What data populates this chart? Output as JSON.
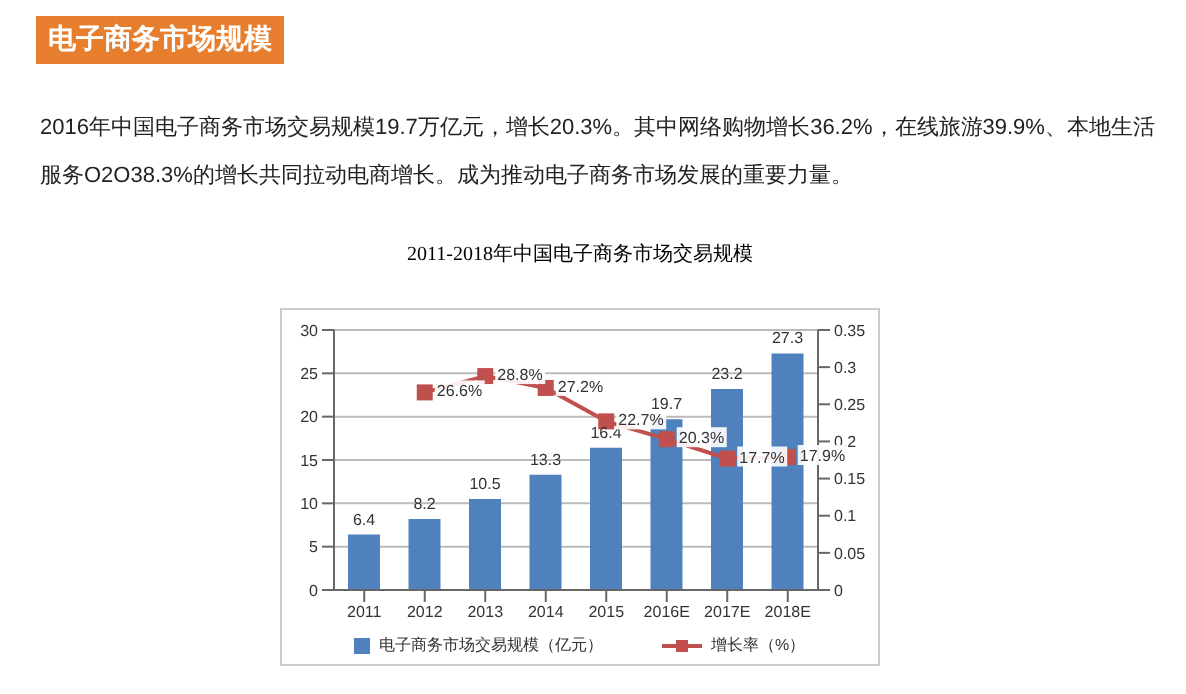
{
  "chart_data": {
    "type": "bar",
    "title": "2011-2018年中国电子商务市场交易规模",
    "annotations": [
      "电子商务市场规模",
      "2016年中国电子商务市场交易规模19.7万亿元，增长20.3%。其中网络购物增长36.2%，在线旅游39.9%、本地生活服务O2O38.3%的增长共同拉动电商增长。成为推动电子商务市场发展的重要力量。"
    ],
    "categories": [
      "2011",
      "2012",
      "2013",
      "2014",
      "2015",
      "2016E",
      "2017E",
      "2018E"
    ],
    "series": [
      {
        "name": "电子商务市场交易规模（亿元）",
        "color": "#4f81bd",
        "values": [
          6.4,
          8.2,
          10.5,
          13.3,
          16.4,
          19.7,
          23.2,
          27.3
        ],
        "value_labels": [
          "6.4",
          "8.2",
          "10.5",
          "13.3",
          "16.4",
          "19.7",
          "23.2",
          "27.3"
        ]
      },
      {
        "name": "增长率（%）",
        "type": "line",
        "axis": "y2",
        "color": "#c0504d",
        "values": [
          null,
          0.266,
          0.288,
          0.272,
          0.227,
          0.203,
          0.177,
          0.179
        ],
        "value_labels": [
          null,
          "26.6%",
          "28.8%",
          "27.2%",
          "22.7%",
          "20.3%",
          "17.7%",
          "17.9%"
        ]
      }
    ],
    "ylim": [
      0,
      30
    ],
    "yticks": [
      0,
      5,
      10,
      15,
      20,
      25,
      30
    ],
    "y2lim": [
      0,
      0.35
    ],
    "y2ticks": [
      0,
      0.05,
      0.1,
      0.15,
      0.2,
      0.25,
      0.3,
      0.35
    ],
    "grid": "y",
    "legend": "bottom",
    "marker": "square",
    "line_style": "solid"
  }
}
